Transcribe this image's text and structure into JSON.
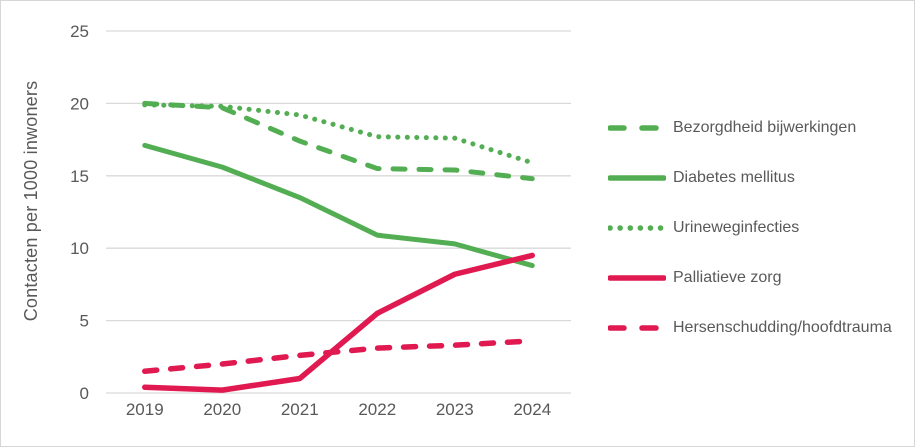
{
  "figure": {
    "background": "#ffffff",
    "border_color": "#d6d6d6"
  },
  "theme": {
    "green": "#53ae53",
    "red": "#e01950",
    "text_gray": "#595959",
    "grid_gray": "#d9d9d9"
  },
  "chart_data": {
    "type": "line",
    "title": "",
    "xlabel": "",
    "ylabel": "Contacten per 1000 inwoners",
    "x": [
      "2019",
      "2020",
      "2021",
      "2022",
      "2023",
      "2024"
    ],
    "ylim": [
      0,
      25
    ],
    "yticks": [
      0,
      5,
      10,
      15,
      20,
      25
    ],
    "grid": true,
    "legend_position": "right",
    "series": [
      {
        "name": "Bezorgdheid bijwerkingen",
        "color": "#53ae53",
        "style": "dashed",
        "values": [
          20.0,
          19.7,
          17.4,
          15.5,
          15.4,
          14.8
        ]
      },
      {
        "name": "Diabetes mellitus",
        "color": "#53ae53",
        "style": "solid",
        "values": [
          17.1,
          15.6,
          13.5,
          10.9,
          10.3,
          8.8
        ]
      },
      {
        "name": "Urineweginfecties",
        "color": "#53ae53",
        "style": "dotted",
        "values": [
          19.9,
          19.8,
          19.2,
          17.7,
          17.6,
          15.9
        ]
      },
      {
        "name": "Palliatieve zorg",
        "color": "#e01950",
        "style": "solid",
        "values": [
          0.4,
          0.2,
          1.0,
          5.5,
          8.2,
          9.5
        ]
      },
      {
        "name": "Hersenschudding/hoofdtrauma",
        "color": "#e01950",
        "style": "dashed",
        "values": [
          1.5,
          2.0,
          2.6,
          3.1,
          3.3,
          3.6
        ]
      }
    ]
  }
}
